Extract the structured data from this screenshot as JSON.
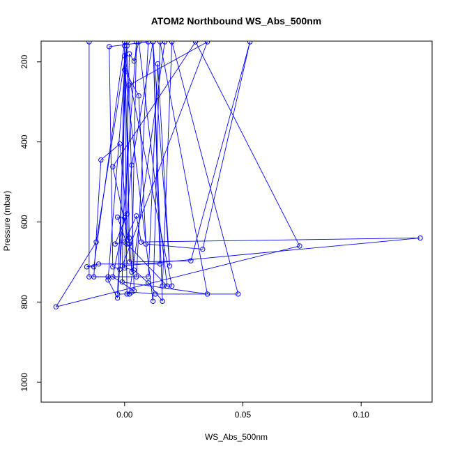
{
  "chart_data": {
    "type": "line",
    "title": "ATOM2 Northbound WS_Abs_500nm",
    "xlabel": "WS_Abs_500nm",
    "ylabel": "Pressure (mbar)",
    "xlim": [
      -0.035,
      0.13
    ],
    "ylim": [
      1050,
      150
    ],
    "y_reversed": true,
    "x_ticks": [
      0.0,
      0.05,
      0.1
    ],
    "x_tick_labels": [
      "0.00",
      "0.05",
      "0.10"
    ],
    "y_ticks": [
      200,
      400,
      600,
      800,
      1000
    ],
    "y_tick_labels": [
      "200",
      "400",
      "600",
      "800",
      "1000"
    ],
    "grid": false,
    "legend": "none",
    "colors": {
      "series": "#0000ff",
      "frame": "#000000"
    },
    "series": [
      {
        "marker": "open-circle",
        "points": [
          {
            "x": -0.015,
            "y": 150
          },
          {
            "x": -0.015,
            "y": 737
          },
          {
            "x": -0.007,
            "y": 737
          },
          {
            "x": 0.005,
            "y": 737
          },
          {
            "x": 0.01,
            "y": 150
          },
          {
            "x": -0.0065,
            "y": 162
          },
          {
            "x": -0.005,
            "y": 712
          },
          {
            "x": -0.002,
            "y": 718
          },
          {
            "x": 0.0,
            "y": 160
          },
          {
            "x": 0.001,
            "y": 780
          },
          {
            "x": 0.003,
            "y": 775
          },
          {
            "x": 0.013,
            "y": 780
          },
          {
            "x": 0.048,
            "y": 780
          },
          {
            "x": 0.02,
            "y": 150
          },
          {
            "x": 0.016,
            "y": 760
          },
          {
            "x": 0.02,
            "y": 760
          },
          {
            "x": 0.0,
            "y": 185
          },
          {
            "x": -0.001,
            "y": 750
          },
          {
            "x": 0.035,
            "y": 780
          },
          {
            "x": 0.015,
            "y": 150
          },
          {
            "x": 0.012,
            "y": 798
          },
          {
            "x": 0.0,
            "y": 220
          },
          {
            "x": 0.006,
            "y": 285
          },
          {
            "x": 0.009,
            "y": 655
          },
          {
            "x": 0.033,
            "y": 668
          },
          {
            "x": 0.053,
            "y": 150
          },
          {
            "x": 0.028,
            "y": 697
          },
          {
            "x": 0.002,
            "y": 700
          },
          {
            "x": 0.001,
            "y": 160
          },
          {
            "x": -0.012,
            "y": 650
          },
          {
            "x": -0.029,
            "y": 812
          },
          {
            "x": 0.074,
            "y": 660
          },
          {
            "x": 0.03,
            "y": 150
          },
          {
            "x": -0.005,
            "y": 462
          },
          {
            "x": 0.002,
            "y": 655
          },
          {
            "x": -0.002,
            "y": 405
          },
          {
            "x": -0.01,
            "y": 445
          },
          {
            "x": -0.013,
            "y": 737
          },
          {
            "x": 0.01,
            "y": 737
          },
          {
            "x": 0.014,
            "y": 205
          },
          {
            "x": 0.019,
            "y": 710
          },
          {
            "x": 0.012,
            "y": 150
          },
          {
            "x": 0.003,
            "y": 458
          },
          {
            "x": 0.001,
            "y": 580
          },
          {
            "x": -0.004,
            "y": 655
          },
          {
            "x": 0.0,
            "y": 650
          },
          {
            "x": 0.005,
            "y": 585
          },
          {
            "x": 0.007,
            "y": 650
          },
          {
            "x": 0.125,
            "y": 640
          },
          {
            "x": -0.001,
            "y": 710
          },
          {
            "x": 0.035,
            "y": 150
          },
          {
            "x": 0.002,
            "y": 258
          },
          {
            "x": 0.004,
            "y": 772
          },
          {
            "x": -0.005,
            "y": 737
          },
          {
            "x": 0.0,
            "y": 590
          },
          {
            "x": -0.003,
            "y": 588
          },
          {
            "x": 0.001,
            "y": 655
          },
          {
            "x": 0.018,
            "y": 760
          },
          {
            "x": 0.006,
            "y": 150
          },
          {
            "x": 0.004,
            "y": 198
          },
          {
            "x": 0.002,
            "y": 180
          },
          {
            "x": 0.0,
            "y": 715
          },
          {
            "x": 0.004,
            "y": 720
          },
          {
            "x": 0.01,
            "y": 752
          },
          {
            "x": 0.016,
            "y": 798
          },
          {
            "x": 0.012,
            "y": 150
          },
          {
            "x": 0.015,
            "y": 705
          },
          {
            "x": -0.011,
            "y": 705
          },
          {
            "x": -0.016,
            "y": 712
          },
          {
            "x": -0.013,
            "y": 712
          },
          {
            "x": 0.0,
            "y": 150
          },
          {
            "x": 0.002,
            "y": 640
          },
          {
            "x": 0.003,
            "y": 725
          },
          {
            "x": 0.005,
            "y": 150
          },
          {
            "x": -0.003,
            "y": 790
          },
          {
            "x": -0.007,
            "y": 745
          },
          {
            "x": 0.001,
            "y": 150
          },
          {
            "x": -0.003,
            "y": 780
          },
          {
            "x": 0.002,
            "y": 780
          },
          {
            "x": 0.017,
            "y": 150
          }
        ]
      }
    ]
  }
}
